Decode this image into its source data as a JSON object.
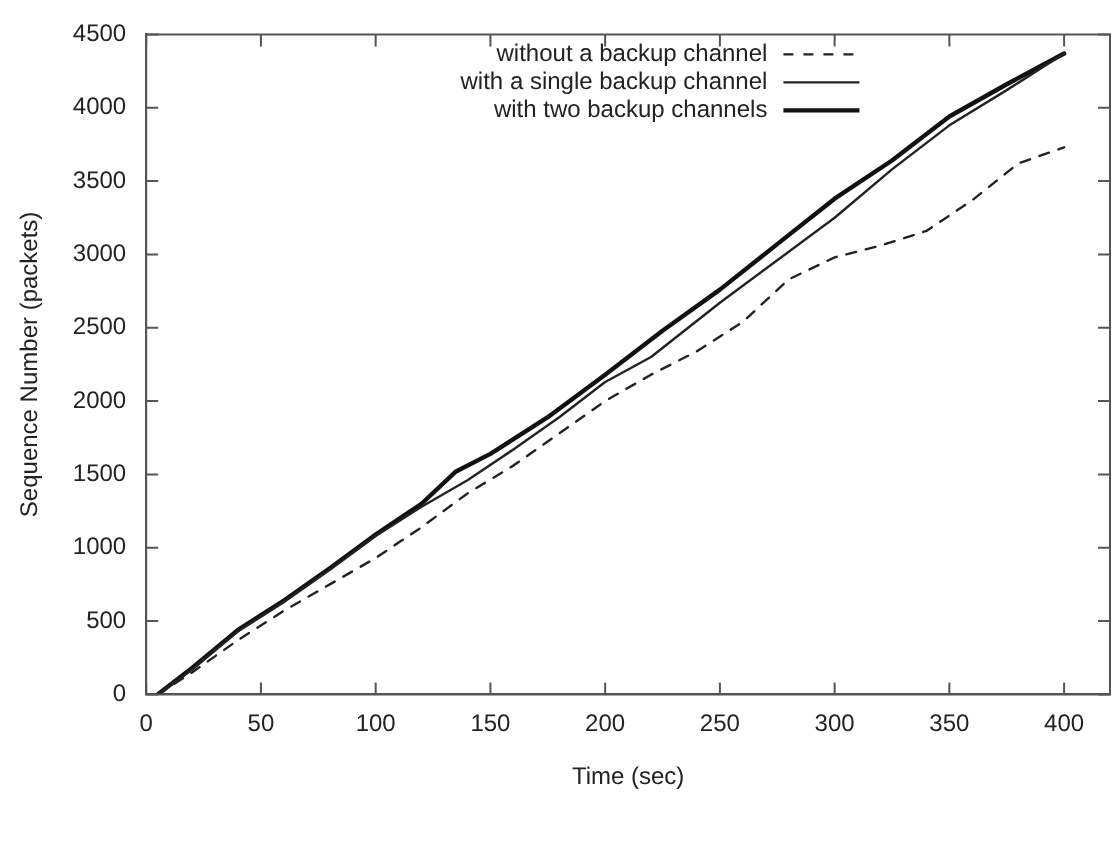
{
  "chart_data": {
    "type": "line",
    "xlabel": "Time (sec)",
    "ylabel": "Sequence Number (packets)",
    "xlim": [
      0,
      420
    ],
    "xticks": [
      0,
      50,
      100,
      150,
      200,
      250,
      300,
      350,
      400
    ],
    "ylim": [
      0,
      4500
    ],
    "yticks": [
      0,
      500,
      1000,
      1500,
      2000,
      2500,
      3000,
      3500,
      4000,
      4500
    ],
    "grid": false,
    "legend": "top right",
    "marker": "none",
    "series": [
      {
        "name": "without a backup channel",
        "color": "#222222",
        "line_style": "dashed",
        "x": [
          5,
          20,
          40,
          60,
          80,
          100,
          120,
          140,
          160,
          180,
          200,
          220,
          240,
          260,
          280,
          300,
          320,
          340,
          360,
          380,
          400
        ],
        "values": [
          0,
          150,
          370,
          570,
          750,
          930,
          1140,
          1370,
          1560,
          1780,
          2000,
          2180,
          2340,
          2540,
          2830,
          2980,
          3060,
          3160,
          3370,
          3620,
          3730
        ]
      },
      {
        "name": "with a single backup channel",
        "color": "#222222",
        "line_style": "solid",
        "x": [
          5,
          20,
          40,
          60,
          80,
          100,
          120,
          140,
          160,
          180,
          200,
          220,
          250,
          275,
          300,
          325,
          350,
          375,
          400
        ],
        "values": [
          0,
          170,
          430,
          630,
          850,
          1080,
          1280,
          1460,
          1670,
          1890,
          2130,
          2300,
          2670,
          2960,
          3250,
          3580,
          3880,
          4120,
          4370
        ]
      },
      {
        "name": "with two backup channels",
        "color": "#111111",
        "line_style": "solid",
        "x": [
          5,
          20,
          40,
          60,
          80,
          100,
          120,
          135,
          150,
          175,
          200,
          225,
          250,
          275,
          300,
          325,
          350,
          375,
          400
        ],
        "values": [
          0,
          180,
          440,
          640,
          860,
          1090,
          1300,
          1520,
          1640,
          1890,
          2180,
          2480,
          2760,
          3070,
          3380,
          3640,
          3940,
          4160,
          4370
        ]
      }
    ]
  }
}
